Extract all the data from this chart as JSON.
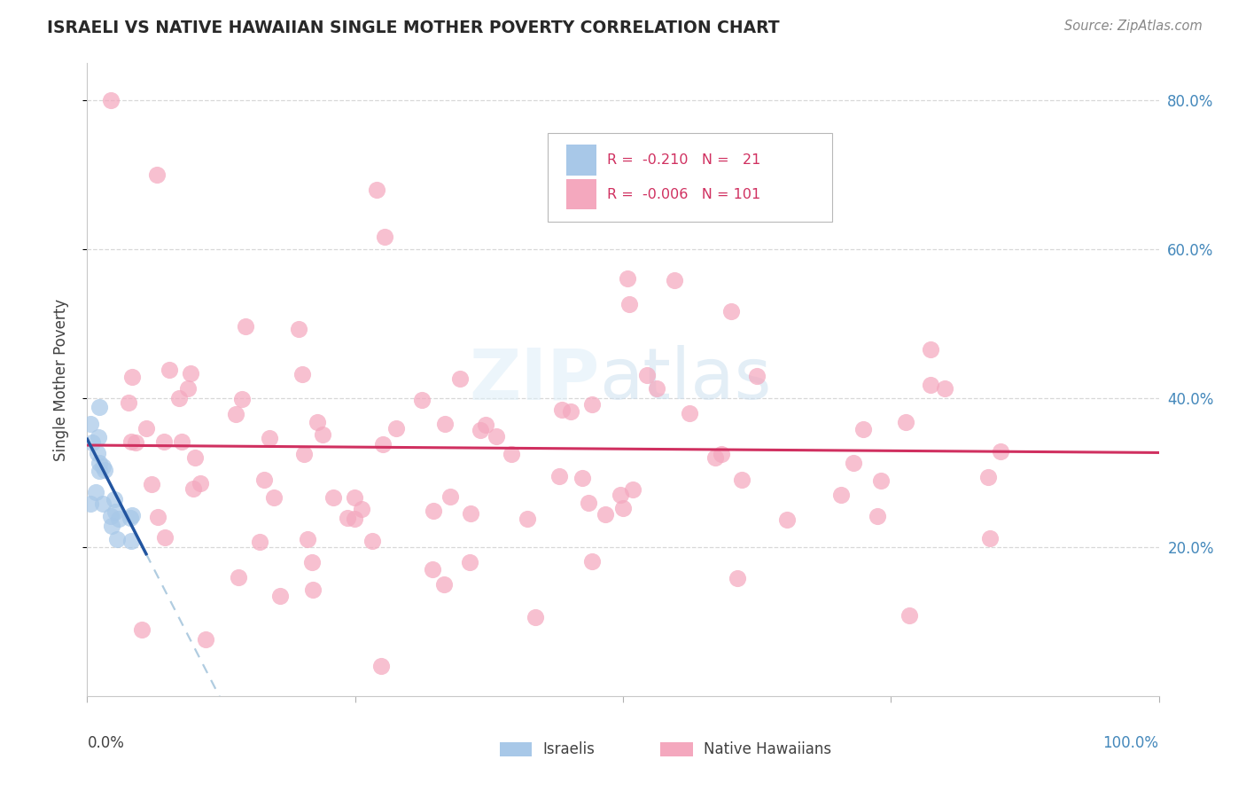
{
  "title": "ISRAELI VS NATIVE HAWAIIAN SINGLE MOTHER POVERTY CORRELATION CHART",
  "source": "Source: ZipAtlas.com",
  "ylabel": "Single Mother Poverty",
  "watermark_zip": "ZIP",
  "watermark_atlas": "atlas",
  "legend_line1_r": "-0.210",
  "legend_line1_n": "21",
  "legend_line2_r": "-0.006",
  "legend_line2_n": "101",
  "bottom_label1": "Israelis",
  "bottom_label2": "Native Hawaiians",
  "israeli_color": "#a8c8e8",
  "native_hawaiian_color": "#f4a8be",
  "israeli_line_color": "#2255a0",
  "native_hawaiian_line_color": "#d03060",
  "extend_line_color": "#b0cce0",
  "grid_color": "#d8d8d8",
  "title_color": "#282828",
  "right_tick_color": "#4488bb",
  "xlim": [
    0.0,
    1.0
  ],
  "ylim": [
    0.0,
    0.85
  ],
  "yticks": [
    0.2,
    0.4,
    0.6,
    0.8
  ],
  "ytick_labels": [
    "20.0%",
    "40.0%",
    "60.0%",
    "80.0%"
  ],
  "n_israeli": 21,
  "n_native_hawaiian": 101,
  "israeli_slope": -2.8,
  "israeli_intercept": 0.345,
  "native_hawaiian_slope": -0.01,
  "native_hawaiian_intercept": 0.337
}
